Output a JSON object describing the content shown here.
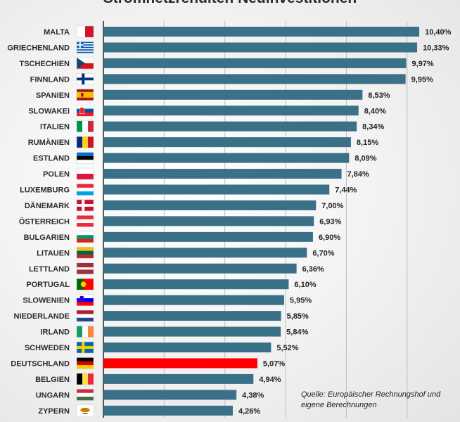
{
  "title": "Stromnetzrenditen Neuinvestitionen",
  "source": "Quelle: Europäischer Rechnungshof und eigene Berechnungen",
  "colors": {
    "bar": "#3a7088",
    "highlight": "#ff0000",
    "grid": "#bdbdbd",
    "axis": "#222222"
  },
  "chart_data": {
    "type": "bar",
    "orientation": "horizontal",
    "title": "Stromnetzrenditen Neuinvestitionen",
    "xlim": [
      0,
      11
    ],
    "grid": true,
    "highlight": "DEUTSCHLAND",
    "categories": [
      "MALTA",
      "GRIECHENLAND",
      "TSCHECHIEN",
      "FINNLAND",
      "SPANIEN",
      "SLOWAKEI",
      "ITALIEN",
      "RUMÄNIEN",
      "ESTLAND",
      "POLEN",
      "LUXEMBURG",
      "DÄNEMARK",
      "ÖSTERREICH",
      "BULGARIEN",
      "LITAUEN",
      "LETTLAND",
      "PORTUGAL",
      "SLOWENIEN",
      "NIEDERLANDE",
      "IRLAND",
      "SCHWEDEN",
      "DEUTSCHLAND",
      "BELGIEN",
      "UNGARN",
      "ZYPERN"
    ],
    "values": [
      10.4,
      10.33,
      9.97,
      9.95,
      8.53,
      8.4,
      8.34,
      8.15,
      8.09,
      7.84,
      7.44,
      7.0,
      6.93,
      6.9,
      6.7,
      6.36,
      6.1,
      5.95,
      5.85,
      5.84,
      5.52,
      5.07,
      4.94,
      4.38,
      4.26
    ],
    "labels": [
      "10,40%",
      "10,33%",
      "9,97%",
      "9,95%",
      "8,53%",
      "8,40%",
      "8,34%",
      "8,15%",
      "8,09%",
      "7,84%",
      "7,44%",
      "7,00%",
      "6,93%",
      "6,90%",
      "6,70%",
      "6,36%",
      "6,10%",
      "5,95%",
      "5,85%",
      "5,84%",
      "5,52%",
      "5,07%",
      "4,94%",
      "4,38%",
      "4,26%"
    ],
    "flags": [
      "malta",
      "greece",
      "czechia",
      "finland",
      "spain",
      "slovakia",
      "italy",
      "romania",
      "estonia",
      "poland",
      "luxembourg",
      "denmark",
      "austria",
      "bulgaria",
      "lithuania",
      "latvia",
      "portugal",
      "slovenia",
      "netherlands",
      "ireland",
      "sweden",
      "germany",
      "belgium",
      "hungary",
      "cyprus"
    ]
  }
}
